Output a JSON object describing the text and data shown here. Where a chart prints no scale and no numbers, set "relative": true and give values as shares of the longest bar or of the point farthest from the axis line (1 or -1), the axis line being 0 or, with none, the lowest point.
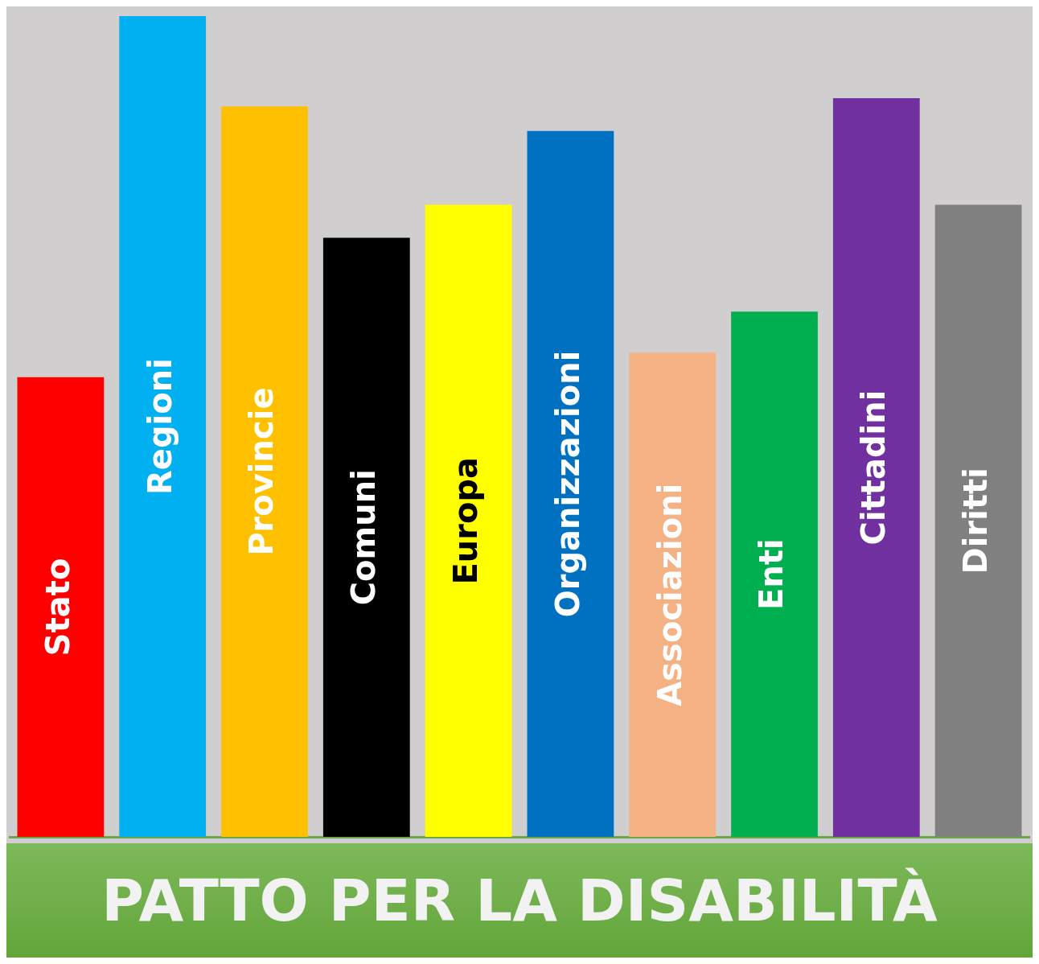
{
  "chart_data": {
    "type": "bar",
    "title": "PATTO PER LA DISABILITÀ",
    "relative": true,
    "categories": [
      "Stato",
      "Regioni",
      "Provincie",
      "Comuni",
      "Europa",
      "Organizzazioni",
      "Associazioni",
      "Enti",
      "Cittadini",
      "Diritti"
    ],
    "values": [
      0.56,
      1,
      0.89,
      0.73,
      0.77,
      0.86,
      0.59,
      0.64,
      0.9,
      0.77
    ],
    "colors": [
      "#ff0000",
      "#00b0f0",
      "#ffc000",
      "#000000",
      "#ffff00",
      "#0070c0",
      "#f4b183",
      "#00b050",
      "#7030a0",
      "#808080"
    ],
    "grid": false,
    "legend": false
  }
}
